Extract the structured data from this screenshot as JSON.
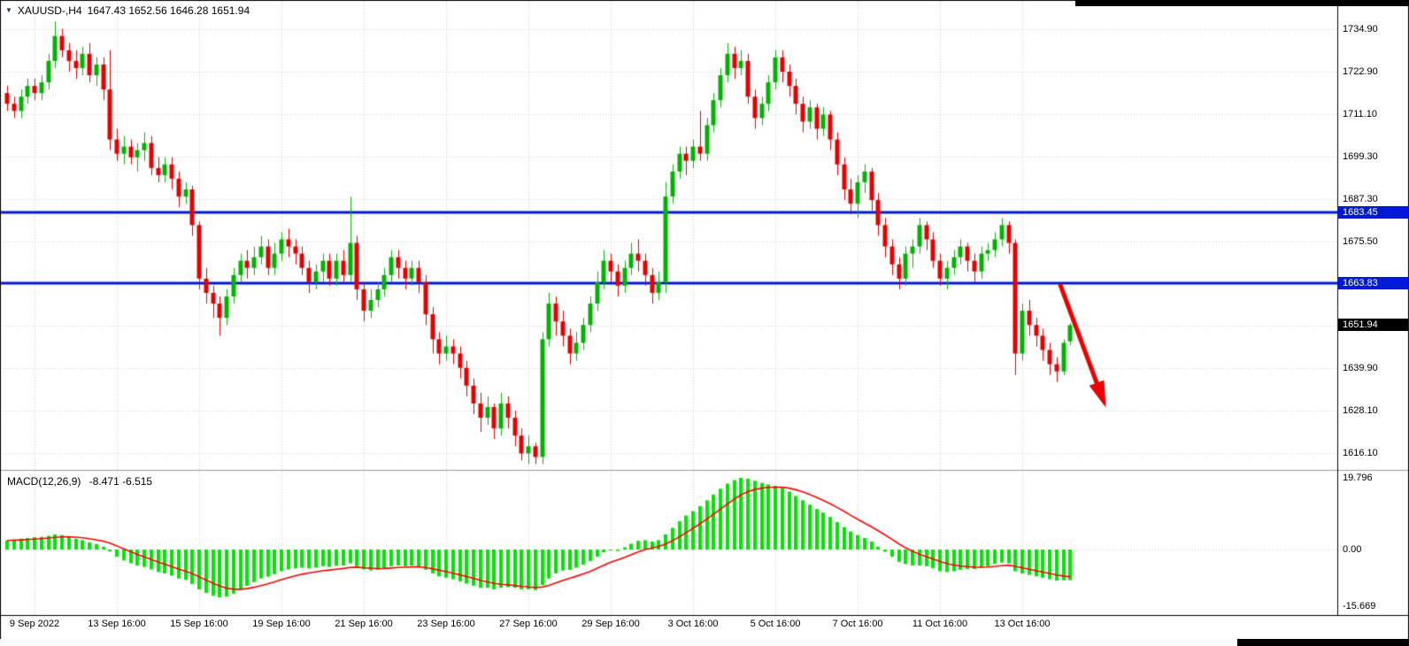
{
  "price_panel": {
    "marker": "▼",
    "symbol_period": "XAUUSD-,H4",
    "ohlc_text": "1647.43 1652.56 1646.28 1651.94"
  },
  "macd_panel": {
    "title": "MACD(12,26,9)",
    "values": "-8.471 -6.515"
  },
  "chart_data": [
    {
      "type": "candlestick",
      "symbol": "XAUUSD-",
      "timeframe": "H4",
      "current_ohlc": {
        "open": 1647.43,
        "high": 1652.56,
        "low": 1646.28,
        "close": 1651.94
      },
      "y_range": [
        1613.5,
        1737.5
      ],
      "y_axis": {
        "gridline_values": [
          1734.9,
          1722.9,
          1711.1,
          1699.3,
          1687.3,
          1675.5,
          1663.7,
          1651.9,
          1639.9,
          1628.1,
          1616.1
        ],
        "labels": [
          {
            "value": 1734.9,
            "text": "1734.90"
          },
          {
            "value": 1722.9,
            "text": "1722.90"
          },
          {
            "value": 1711.1,
            "text": "1711.10"
          },
          {
            "value": 1699.3,
            "text": "1699.30"
          },
          {
            "value": 1687.3,
            "text": "1687.30"
          },
          {
            "value": 1675.5,
            "text": "1675.50"
          },
          {
            "value": 1639.9,
            "text": "1639.90"
          },
          {
            "value": 1628.1,
            "text": "1628.10"
          },
          {
            "value": 1616.1,
            "text": "1616.10"
          }
        ]
      },
      "x_axis": {
        "ticks": [
          {
            "bar": 4,
            "text": "9 Sep 2022"
          },
          {
            "bar": 16,
            "text": "13 Sep 16:00"
          },
          {
            "bar": 28,
            "text": "15 Sep 16:00"
          },
          {
            "bar": 40,
            "text": "19 Sep 16:00"
          },
          {
            "bar": 52,
            "text": "21 Sep 16:00"
          },
          {
            "bar": 64,
            "text": "23 Sep 16:00"
          },
          {
            "bar": 76,
            "text": "27 Sep 16:00"
          },
          {
            "bar": 88,
            "text": "29 Sep 16:00"
          },
          {
            "bar": 100,
            "text": "3 Oct 16:00"
          },
          {
            "bar": 112,
            "text": "5 Oct 16:00"
          },
          {
            "bar": 124,
            "text": "7 Oct 16:00"
          },
          {
            "bar": 136,
            "text": "11 Oct 16:00"
          },
          {
            "bar": 148,
            "text": "13 Oct 16:00"
          }
        ]
      },
      "hlines": [
        {
          "price": 1683.45,
          "text": "1683.45",
          "color": "#0018d8"
        },
        {
          "price": 1663.83,
          "text": "1663.83",
          "color": "#0018d8"
        }
      ],
      "current_price_label": {
        "price": 1651.94,
        "text": "1651.94",
        "bg": "#000000",
        "color": "#ffffff"
      },
      "colors": {
        "up": "#00b300",
        "down": "#e60000",
        "grid": "#cdcdcd"
      },
      "arrow": {
        "color": "#ee0000",
        "from": {
          "bar": 153.5,
          "price": 1663.5
        },
        "to": {
          "bar": 160.2,
          "price": 1628.8
        }
      },
      "candles": [
        [
          1717,
          1719,
          1712,
          1714
        ],
        [
          1714,
          1716,
          1710,
          1712
        ],
        [
          1712,
          1718,
          1710,
          1716
        ],
        [
          1716,
          1721,
          1714,
          1719
        ],
        [
          1719,
          1721,
          1715,
          1717
        ],
        [
          1717,
          1722,
          1715,
          1720
        ],
        [
          1720,
          1728,
          1718,
          1726
        ],
        [
          1726,
          1737,
          1724,
          1733
        ],
        [
          1733,
          1735,
          1727,
          1729
        ],
        [
          1729,
          1731,
          1723,
          1726
        ],
        [
          1726,
          1729,
          1721,
          1724
        ],
        [
          1724,
          1730,
          1722,
          1728
        ],
        [
          1728,
          1731,
          1720,
          1722
        ],
        [
          1722,
          1727,
          1719,
          1725
        ],
        [
          1725,
          1727,
          1715,
          1718
        ],
        [
          1718,
          1729,
          1701,
          1704
        ],
        [
          1704,
          1707,
          1698,
          1700
        ],
        [
          1700,
          1705,
          1697,
          1702
        ],
        [
          1702,
          1704,
          1697,
          1699
        ],
        [
          1699,
          1703,
          1695,
          1701
        ],
        [
          1701,
          1706,
          1698,
          1703
        ],
        [
          1703,
          1705,
          1694,
          1696
        ],
        [
          1696,
          1699,
          1692,
          1694
        ],
        [
          1694,
          1699,
          1692,
          1697
        ],
        [
          1697,
          1699,
          1690,
          1693
        ],
        [
          1693,
          1695,
          1685,
          1688
        ],
        [
          1688,
          1692,
          1686,
          1690
        ],
        [
          1690,
          1691,
          1677,
          1680
        ],
        [
          1680,
          1681,
          1662,
          1665
        ],
        [
          1665,
          1668,
          1658,
          1661
        ],
        [
          1661,
          1663,
          1654,
          1658
        ],
        [
          1658,
          1660,
          1649,
          1654
        ],
        [
          1654,
          1662,
          1652,
          1660
        ],
        [
          1660,
          1668,
          1658,
          1666
        ],
        [
          1666,
          1672,
          1664,
          1670
        ],
        [
          1670,
          1673,
          1665,
          1668
        ],
        [
          1668,
          1674,
          1666,
          1671
        ],
        [
          1671,
          1677,
          1669,
          1674
        ],
        [
          1674,
          1676,
          1666,
          1668
        ],
        [
          1668,
          1675,
          1666,
          1672
        ],
        [
          1672,
          1678,
          1670,
          1676
        ],
        [
          1676,
          1679,
          1671,
          1674
        ],
        [
          1674,
          1676,
          1669,
          1672
        ],
        [
          1672,
          1674,
          1666,
          1668
        ],
        [
          1668,
          1670,
          1661,
          1664
        ],
        [
          1664,
          1669,
          1662,
          1667
        ],
        [
          1667,
          1672,
          1664,
          1670
        ],
        [
          1670,
          1672,
          1663,
          1665
        ],
        [
          1665,
          1672,
          1663,
          1670
        ],
        [
          1670,
          1673,
          1664,
          1666
        ],
        [
          1666,
          1688,
          1664,
          1675
        ],
        [
          1675,
          1677,
          1659,
          1662
        ],
        [
          1662,
          1664,
          1653,
          1656
        ],
        [
          1656,
          1662,
          1654,
          1659
        ],
        [
          1659,
          1664,
          1657,
          1662
        ],
        [
          1662,
          1668,
          1660,
          1666
        ],
        [
          1666,
          1673,
          1664,
          1671
        ],
        [
          1671,
          1673,
          1665,
          1668
        ],
        [
          1668,
          1670,
          1662,
          1665
        ],
        [
          1665,
          1670,
          1663,
          1668
        ],
        [
          1668,
          1670,
          1661,
          1664
        ],
        [
          1664,
          1666,
          1652,
          1655
        ],
        [
          1655,
          1657,
          1644,
          1648
        ],
        [
          1648,
          1650,
          1641,
          1644
        ],
        [
          1644,
          1649,
          1642,
          1646
        ],
        [
          1646,
          1648,
          1641,
          1644
        ],
        [
          1644,
          1646,
          1637,
          1640
        ],
        [
          1640,
          1642,
          1632,
          1635
        ],
        [
          1635,
          1637,
          1627,
          1630
        ],
        [
          1630,
          1633,
          1622,
          1626
        ],
        [
          1626,
          1632,
          1624,
          1629
        ],
        [
          1629,
          1630,
          1620,
          1623
        ],
        [
          1623,
          1633,
          1621,
          1630
        ],
        [
          1630,
          1632,
          1623,
          1626
        ],
        [
          1626,
          1628,
          1618,
          1621
        ],
        [
          1621,
          1623,
          1614,
          1616
        ],
        [
          1616,
          1621,
          1613,
          1618
        ],
        [
          1618,
          1619,
          1613,
          1615
        ],
        [
          1615,
          1650,
          1613,
          1648
        ],
        [
          1648,
          1661,
          1646,
          1658
        ],
        [
          1658,
          1660,
          1649,
          1653
        ],
        [
          1653,
          1656,
          1646,
          1649
        ],
        [
          1649,
          1651,
          1641,
          1644
        ],
        [
          1644,
          1650,
          1642,
          1647
        ],
        [
          1647,
          1654,
          1645,
          1652
        ],
        [
          1652,
          1660,
          1650,
          1658
        ],
        [
          1658,
          1667,
          1656,
          1664
        ],
        [
          1664,
          1673,
          1662,
          1670
        ],
        [
          1670,
          1672,
          1664,
          1667
        ],
        [
          1667,
          1669,
          1660,
          1663
        ],
        [
          1663,
          1670,
          1661,
          1668
        ],
        [
          1668,
          1675,
          1666,
          1672
        ],
        [
          1672,
          1676,
          1667,
          1670
        ],
        [
          1670,
          1672,
          1663,
          1666
        ],
        [
          1666,
          1668,
          1658,
          1661
        ],
        [
          1661,
          1667,
          1659,
          1664
        ],
        [
          1664,
          1692,
          1661,
          1688
        ],
        [
          1688,
          1697,
          1686,
          1695
        ],
        [
          1695,
          1702,
          1693,
          1700
        ],
        [
          1700,
          1702,
          1694,
          1698
        ],
        [
          1698,
          1704,
          1696,
          1702
        ],
        [
          1702,
          1712,
          1698,
          1700
        ],
        [
          1700,
          1710,
          1698,
          1708
        ],
        [
          1708,
          1717,
          1706,
          1715
        ],
        [
          1715,
          1724,
          1713,
          1722
        ],
        [
          1722,
          1731,
          1720,
          1728
        ],
        [
          1728,
          1730,
          1721,
          1724
        ],
        [
          1724,
          1729,
          1722,
          1726
        ],
        [
          1726,
          1728,
          1714,
          1716
        ],
        [
          1716,
          1718,
          1707,
          1710
        ],
        [
          1710,
          1716,
          1708,
          1714
        ],
        [
          1714,
          1722,
          1712,
          1720
        ],
        [
          1720,
          1729,
          1718,
          1727
        ],
        [
          1727,
          1729,
          1720,
          1723
        ],
        [
          1723,
          1725,
          1716,
          1719
        ],
        [
          1719,
          1721,
          1711,
          1714
        ],
        [
          1714,
          1716,
          1706,
          1709
        ],
        [
          1709,
          1715,
          1707,
          1713
        ],
        [
          1713,
          1714,
          1704,
          1707
        ],
        [
          1707,
          1713,
          1705,
          1711
        ],
        [
          1711,
          1712,
          1701,
          1704
        ],
        [
          1704,
          1706,
          1694,
          1697
        ],
        [
          1697,
          1699,
          1687,
          1690
        ],
        [
          1690,
          1693,
          1683,
          1686
        ],
        [
          1686,
          1694,
          1682,
          1692
        ],
        [
          1692,
          1697,
          1689,
          1695
        ],
        [
          1695,
          1696,
          1684,
          1687
        ],
        [
          1687,
          1689,
          1677,
          1680
        ],
        [
          1680,
          1682,
          1671,
          1674
        ],
        [
          1674,
          1676,
          1666,
          1669
        ],
        [
          1669,
          1671,
          1662,
          1665
        ],
        [
          1665,
          1674,
          1663,
          1672
        ],
        [
          1672,
          1676,
          1668,
          1674
        ],
        [
          1674,
          1682,
          1672,
          1680
        ],
        [
          1680,
          1681,
          1673,
          1676
        ],
        [
          1676,
          1678,
          1668,
          1670
        ],
        [
          1670,
          1672,
          1663,
          1665
        ],
        [
          1665,
          1670,
          1662,
          1668
        ],
        [
          1668,
          1673,
          1666,
          1671
        ],
        [
          1671,
          1676,
          1669,
          1674
        ],
        [
          1674,
          1675,
          1667,
          1670
        ],
        [
          1670,
          1672,
          1664,
          1667
        ],
        [
          1667,
          1674,
          1665,
          1672
        ],
        [
          1672,
          1675,
          1670,
          1673
        ],
        [
          1673,
          1678,
          1671,
          1676
        ],
        [
          1676,
          1682,
          1674,
          1680
        ],
        [
          1680,
          1681,
          1672,
          1675
        ],
        [
          1675,
          1676,
          1638,
          1644
        ],
        [
          1644,
          1658,
          1642,
          1656
        ],
        [
          1656,
          1659,
          1649,
          1652
        ],
        [
          1652,
          1654,
          1646,
          1649
        ],
        [
          1649,
          1651,
          1642,
          1645
        ],
        [
          1645,
          1647,
          1638,
          1641
        ],
        [
          1641,
          1643,
          1636,
          1639
        ],
        [
          1639,
          1648,
          1638,
          1647
        ],
        [
          1647.43,
          1652.56,
          1646.28,
          1651.94
        ]
      ]
    },
    {
      "type": "macd",
      "label": "MACD(12,26,9)",
      "current_values": {
        "macd": -8.471,
        "signal": -6.515
      },
      "y_range": [
        -17,
        20.5
      ],
      "y_axis": {
        "labels": [
          {
            "value": 19.796,
            "text": "19.796"
          },
          {
            "value": 0,
            "text": "0.00"
          },
          {
            "value": -15.669,
            "text": "-15.669"
          }
        ]
      },
      "colors": {
        "histogram": "#00e600",
        "signal": "#ff0000"
      },
      "signal_period": 9,
      "histogram": [
        2.5,
        2.8,
        3.0,
        3.2,
        3.4,
        3.5,
        3.8,
        4.2,
        4.0,
        3.6,
        3.0,
        2.6,
        2.0,
        1.5,
        0.8,
        -0.5,
        -2.0,
        -3.0,
        -3.8,
        -4.4,
        -4.8,
        -5.5,
        -6.2,
        -6.6,
        -7.2,
        -8.0,
        -8.4,
        -9.5,
        -11.0,
        -12.0,
        -12.8,
        -13.2,
        -13.0,
        -12.2,
        -11.0,
        -10.0,
        -9.0,
        -8.0,
        -7.5,
        -6.8,
        -6.0,
        -5.5,
        -5.2,
        -5.0,
        -5.2,
        -5.0,
        -4.6,
        -4.8,
        -4.5,
        -4.4,
        -3.8,
        -4.6,
        -5.5,
        -5.8,
        -5.6,
        -5.2,
        -4.6,
        -4.4,
        -4.6,
        -4.4,
        -4.8,
        -5.6,
        -6.6,
        -7.4,
        -7.8,
        -8.2,
        -8.8,
        -9.4,
        -10.0,
        -10.6,
        -10.6,
        -11.0,
        -10.6,
        -10.4,
        -10.6,
        -11.0,
        -11.0,
        -11.2,
        -9.8,
        -8.0,
        -6.6,
        -5.8,
        -5.6,
        -5.0,
        -4.2,
        -3.2,
        -2.0,
        -0.8,
        -0.2,
        -0.4,
        0.6,
        1.6,
        2.4,
        2.6,
        2.2,
        2.6,
        4.2,
        6.0,
        7.8,
        9.4,
        10.6,
        12.0,
        13.6,
        15.2,
        16.8,
        18.2,
        19.2,
        19.8,
        19.6,
        19.0,
        18.4,
        18.0,
        17.6,
        17.0,
        16.0,
        14.8,
        13.6,
        12.4,
        11.2,
        10.2,
        9.0,
        7.6,
        6.2,
        5.0,
        4.0,
        3.2,
        2.2,
        0.8,
        -0.6,
        -2.0,
        -3.4,
        -4.0,
        -4.4,
        -4.4,
        -4.6,
        -5.2,
        -6.0,
        -6.2,
        -6.0,
        -5.6,
        -5.4,
        -5.4,
        -5.0,
        -4.6,
        -4.0,
        -3.6,
        -3.8,
        -6.0,
        -6.6,
        -7.0,
        -7.4,
        -7.8,
        -8.2,
        -8.6,
        -8.5,
        -8.471
      ]
    }
  ]
}
